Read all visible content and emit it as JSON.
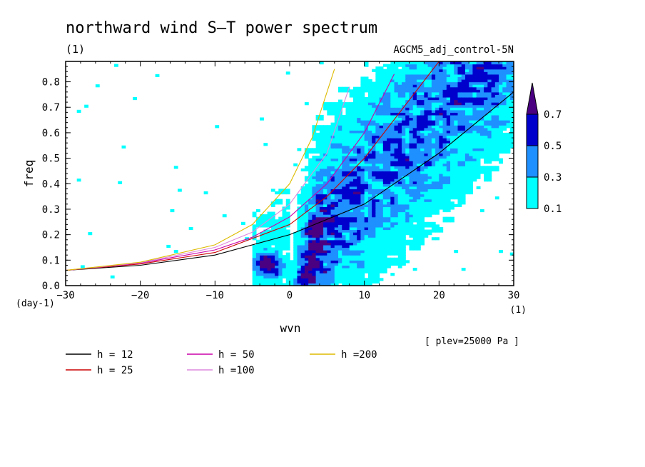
{
  "chart_data": {
    "type": "heatmap",
    "title": "northward wind S–T power spectrum",
    "units_label": "(1)",
    "dataset_label": "AGCM5_adj_control-5N",
    "xlabel": "wvn",
    "ylabel": "freq",
    "x_units": "(1)",
    "y_units": "(day-1)",
    "level_note": "[ plev=25000 Pa ]",
    "xlim": [
      -30,
      30
    ],
    "ylim": [
      0,
      0.88
    ],
    "xticks": [
      -30,
      -20,
      -10,
      0,
      10,
      20,
      30
    ],
    "xtick_labels": [
      "−30",
      "−20",
      "−10",
      "0",
      "10",
      "20",
      "30"
    ],
    "yticks": [
      0,
      0.1,
      0.2,
      0.3,
      0.4,
      0.5,
      0.6,
      0.7,
      0.8
    ],
    "ytick_labels": [
      "0.0",
      "0.1",
      "0.2",
      "0.3",
      "0.4",
      "0.5",
      "0.6",
      "0.7",
      "0.8"
    ],
    "contour_levels": [
      0.1,
      0.3,
      0.5,
      0.7
    ],
    "colorbar_labels": [
      "0.1",
      "0.3",
      "0.5",
      "0.7"
    ],
    "colors": [
      "#00ffff",
      "#1e90ff",
      "#0000cd",
      "#4b0082"
    ],
    "power_field": [
      {
        "x": 3,
        "y": 0.04,
        "v": 0.75
      },
      {
        "x": 3,
        "y": 0.12,
        "v": 0.6
      },
      {
        "x": 4,
        "y": 0.18,
        "v": 0.75
      },
      {
        "x": 5,
        "y": 0.25,
        "v": 0.5
      },
      {
        "x": -3,
        "y": 0.07,
        "v": 0.6
      },
      {
        "x": -3,
        "y": 0.12,
        "v": 0.35
      },
      {
        "x": 6,
        "y": 0.32,
        "v": 0.35
      },
      {
        "x": 7,
        "y": 0.55,
        "v": 0.35
      },
      {
        "x": 8,
        "y": 0.68,
        "v": 0.5
      },
      {
        "x": 8,
        "y": 0.8,
        "v": 0.35
      },
      {
        "x": 12,
        "y": 0.6,
        "v": 0.35
      },
      {
        "x": 13,
        "y": 0.52,
        "v": 0.5
      },
      {
        "x": 18,
        "y": 0.65,
        "v": 0.35
      },
      {
        "x": 22,
        "y": 0.7,
        "v": 0.35
      }
    ],
    "series": [
      {
        "name": "h = 12",
        "color": "#000000",
        "x": [
          -30,
          -20,
          -10,
          0,
          10,
          20,
          30
        ],
        "y": [
          0.06,
          0.08,
          0.12,
          0.2,
          0.32,
          0.52,
          0.76
        ]
      },
      {
        "name": "h = 25",
        "color": "#cc0000",
        "x": [
          -30,
          -20,
          -10,
          0,
          5,
          10,
          15,
          20
        ],
        "y": [
          0.06,
          0.085,
          0.13,
          0.24,
          0.35,
          0.5,
          0.69,
          0.88
        ]
      },
      {
        "name": "h = 50",
        "color": "#cc00aa",
        "x": [
          -30,
          -20,
          -10,
          -5,
          0,
          5,
          10,
          14
        ],
        "y": [
          0.06,
          0.088,
          0.14,
          0.19,
          0.27,
          0.4,
          0.6,
          0.83
        ]
      },
      {
        "name": "h =100",
        "color": "#dd88dd",
        "x": [
          -30,
          -20,
          -10,
          -5,
          0,
          5,
          8
        ],
        "y": [
          0.06,
          0.09,
          0.15,
          0.21,
          0.32,
          0.52,
          0.78
        ]
      },
      {
        "name": "h =200",
        "color": "#ddbb00",
        "x": [
          -30,
          -20,
          -10,
          -5,
          0,
          3,
          6
        ],
        "y": [
          0.06,
          0.092,
          0.16,
          0.24,
          0.4,
          0.58,
          0.85
        ]
      }
    ],
    "legend": [
      {
        "name": "h = 12",
        "color": "#000000"
      },
      {
        "name": "h = 25",
        "color": "#cc0000"
      },
      {
        "name": "h = 50",
        "color": "#cc00aa"
      },
      {
        "name": "h =100",
        "color": "#dd88dd"
      },
      {
        "name": "h =200",
        "color": "#ddbb00"
      }
    ],
    "grid": false
  }
}
